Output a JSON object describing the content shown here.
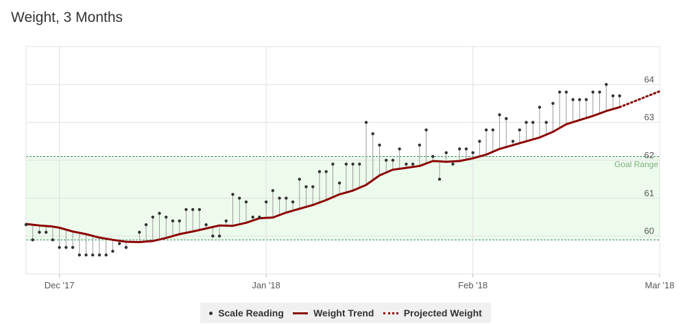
{
  "colors": {
    "trend": "#8b0000",
    "projection": "#8b0000",
    "reading": "#333333",
    "goal_fill": "#edfbed",
    "goal_line": "#2e8b57",
    "goal_label": "#7fae7f",
    "grid": "#e0e0e0",
    "stem": "#999999"
  },
  "legend": {
    "reading_label": "Scale Reading",
    "trend_label": "Weight Trend",
    "projected_label": "Projected Weight"
  },
  "chart_data": {
    "type": "line",
    "title": "Weight, 3 Months",
    "xlabel": "",
    "ylabel": "",
    "x_axis_type": "date",
    "xlim": [
      "2017-11-26",
      "2018-03-01"
    ],
    "ylim": [
      59.0,
      65.0
    ],
    "x_ticks": [
      {
        "date": "2017-12-01",
        "label": "Dec '17"
      },
      {
        "date": "2018-01-01",
        "label": "Jan '18"
      },
      {
        "date": "2018-02-01",
        "label": "Feb '18"
      },
      {
        "date": "2018-03-01",
        "label": "Mar '18"
      }
    ],
    "y_ticks": [
      60,
      61,
      62,
      63,
      64
    ],
    "grid": true,
    "y_axis_position": "right",
    "legend_position": "bottom",
    "goal_range": {
      "low": 59.9,
      "high": 62.1,
      "label": "Goal Range"
    },
    "series": [
      {
        "name": "Scale Reading",
        "type": "scatter",
        "points": [
          [
            "2017-11-26",
            60.3
          ],
          [
            "2017-11-27",
            59.9
          ],
          [
            "2017-11-28",
            60.1
          ],
          [
            "2017-11-29",
            60.1
          ],
          [
            "2017-11-30",
            59.9
          ],
          [
            "2017-12-01",
            59.7
          ],
          [
            "2017-12-02",
            59.7
          ],
          [
            "2017-12-03",
            59.7
          ],
          [
            "2017-12-04",
            59.5
          ],
          [
            "2017-12-05",
            59.5
          ],
          [
            "2017-12-06",
            59.5
          ],
          [
            "2017-12-07",
            59.5
          ],
          [
            "2017-12-08",
            59.5
          ],
          [
            "2017-12-09",
            59.6
          ],
          [
            "2017-12-10",
            59.8
          ],
          [
            "2017-12-11",
            59.7
          ],
          [
            "2017-12-13",
            60.1
          ],
          [
            "2017-12-14",
            60.3
          ],
          [
            "2017-12-15",
            60.5
          ],
          [
            "2017-12-16",
            60.6
          ],
          [
            "2017-12-17",
            60.5
          ],
          [
            "2017-12-18",
            60.4
          ],
          [
            "2017-12-19",
            60.4
          ],
          [
            "2017-12-20",
            60.7
          ],
          [
            "2017-12-21",
            60.7
          ],
          [
            "2017-12-22",
            60.7
          ],
          [
            "2017-12-23",
            60.3
          ],
          [
            "2017-12-24",
            60.0
          ],
          [
            "2017-12-25",
            60.0
          ],
          [
            "2017-12-26",
            60.4
          ],
          [
            "2017-12-27",
            61.1
          ],
          [
            "2017-12-28",
            61.0
          ],
          [
            "2017-12-29",
            60.9
          ],
          [
            "2017-12-30",
            60.5
          ],
          [
            "2017-12-31",
            60.5
          ],
          [
            "2018-01-01",
            60.9
          ],
          [
            "2018-01-02",
            61.2
          ],
          [
            "2018-01-03",
            61.0
          ],
          [
            "2018-01-04",
            61.0
          ],
          [
            "2018-01-05",
            60.9
          ],
          [
            "2018-01-06",
            61.5
          ],
          [
            "2018-01-07",
            61.3
          ],
          [
            "2018-01-08",
            61.3
          ],
          [
            "2018-01-09",
            61.7
          ],
          [
            "2018-01-10",
            61.7
          ],
          [
            "2018-01-11",
            61.9
          ],
          [
            "2018-01-12",
            61.4
          ],
          [
            "2018-01-13",
            61.9
          ],
          [
            "2018-01-14",
            61.9
          ],
          [
            "2018-01-15",
            61.9
          ],
          [
            "2018-01-16",
            63.0
          ],
          [
            "2018-01-17",
            62.7
          ],
          [
            "2018-01-18",
            62.4
          ],
          [
            "2018-01-19",
            62.0
          ],
          [
            "2018-01-20",
            62.0
          ],
          [
            "2018-01-21",
            62.3
          ],
          [
            "2018-01-22",
            61.9
          ],
          [
            "2018-01-23",
            61.9
          ],
          [
            "2018-01-24",
            62.4
          ],
          [
            "2018-01-25",
            62.8
          ],
          [
            "2018-01-26",
            62.1
          ],
          [
            "2018-01-27",
            61.5
          ],
          [
            "2018-01-28",
            62.2
          ],
          [
            "2018-01-29",
            61.9
          ],
          [
            "2018-01-30",
            62.3
          ],
          [
            "2018-01-31",
            62.3
          ],
          [
            "2018-02-01",
            62.2
          ],
          [
            "2018-02-02",
            62.5
          ],
          [
            "2018-02-03",
            62.8
          ],
          [
            "2018-02-04",
            62.8
          ],
          [
            "2018-02-05",
            63.2
          ],
          [
            "2018-02-06",
            63.1
          ],
          [
            "2018-02-07",
            62.5
          ],
          [
            "2018-02-08",
            62.8
          ],
          [
            "2018-02-09",
            63.0
          ],
          [
            "2018-02-10",
            63.0
          ],
          [
            "2018-02-11",
            63.4
          ],
          [
            "2018-02-12",
            63.0
          ],
          [
            "2018-02-13",
            63.5
          ],
          [
            "2018-02-14",
            63.8
          ],
          [
            "2018-02-15",
            63.8
          ],
          [
            "2018-02-16",
            63.6
          ],
          [
            "2018-02-17",
            63.6
          ],
          [
            "2018-02-18",
            63.6
          ],
          [
            "2018-02-19",
            63.8
          ],
          [
            "2018-02-20",
            63.8
          ],
          [
            "2018-02-21",
            64.0
          ],
          [
            "2018-02-22",
            63.7
          ],
          [
            "2018-02-23",
            63.7
          ]
        ]
      },
      {
        "name": "Weight Trend",
        "type": "line",
        "points": [
          [
            "2017-11-26",
            60.32
          ],
          [
            "2017-11-28",
            60.28
          ],
          [
            "2017-11-30",
            60.25
          ],
          [
            "2017-12-01",
            60.22
          ],
          [
            "2017-12-03",
            60.12
          ],
          [
            "2017-12-05",
            60.05
          ],
          [
            "2017-12-07",
            59.96
          ],
          [
            "2017-12-09",
            59.9
          ],
          [
            "2017-12-11",
            59.85
          ],
          [
            "2017-12-13",
            59.84
          ],
          [
            "2017-12-15",
            59.87
          ],
          [
            "2017-12-17",
            59.95
          ],
          [
            "2017-12-19",
            60.05
          ],
          [
            "2017-12-21",
            60.12
          ],
          [
            "2017-12-23",
            60.2
          ],
          [
            "2017-12-25",
            60.28
          ],
          [
            "2017-12-27",
            60.27
          ],
          [
            "2017-12-29",
            60.35
          ],
          [
            "2017-12-31",
            60.47
          ],
          [
            "2018-01-02",
            60.49
          ],
          [
            "2018-01-04",
            60.62
          ],
          [
            "2018-01-06",
            60.72
          ],
          [
            "2018-01-08",
            60.82
          ],
          [
            "2018-01-10",
            60.95
          ],
          [
            "2018-01-12",
            61.1
          ],
          [
            "2018-01-14",
            61.2
          ],
          [
            "2018-01-16",
            61.35
          ],
          [
            "2018-01-18",
            61.6
          ],
          [
            "2018-01-20",
            61.75
          ],
          [
            "2018-01-22",
            61.8
          ],
          [
            "2018-01-24",
            61.85
          ],
          [
            "2018-01-26",
            61.98
          ],
          [
            "2018-01-28",
            61.96
          ],
          [
            "2018-01-30",
            61.98
          ],
          [
            "2018-02-01",
            62.05
          ],
          [
            "2018-02-03",
            62.15
          ],
          [
            "2018-02-05",
            62.3
          ],
          [
            "2018-02-07",
            62.4
          ],
          [
            "2018-02-09",
            62.5
          ],
          [
            "2018-02-11",
            62.6
          ],
          [
            "2018-02-13",
            62.75
          ],
          [
            "2018-02-15",
            62.95
          ],
          [
            "2018-02-17",
            63.06
          ],
          [
            "2018-02-19",
            63.17
          ],
          [
            "2018-02-21",
            63.3
          ],
          [
            "2018-02-23",
            63.4
          ]
        ]
      },
      {
        "name": "Projected Weight",
        "type": "line",
        "points": [
          [
            "2018-02-23",
            63.4
          ],
          [
            "2018-03-01",
            63.82
          ]
        ]
      }
    ]
  }
}
